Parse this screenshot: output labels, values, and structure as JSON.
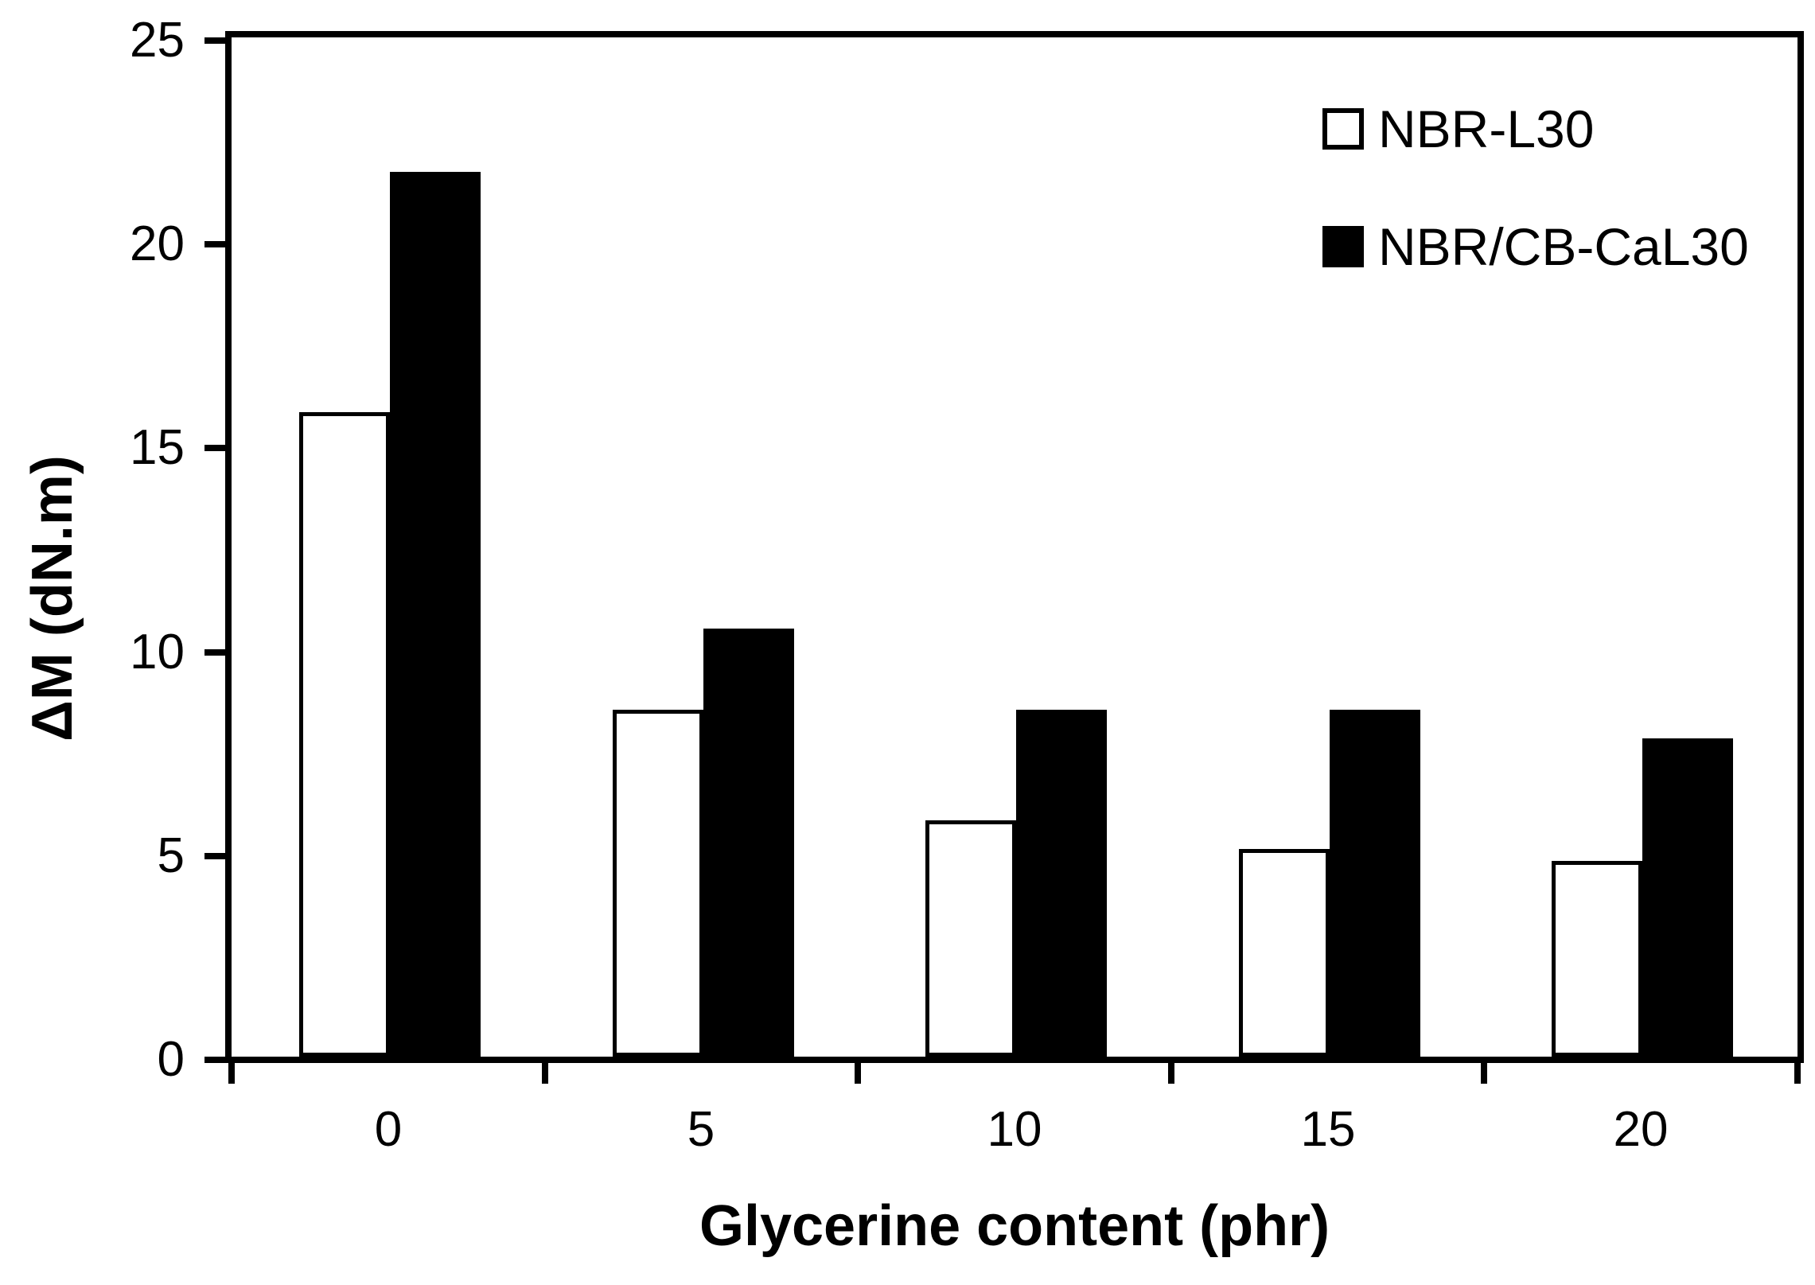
{
  "colors": {
    "foreground": "#000000",
    "background": "#ffffff",
    "series_white_fill": "#ffffff",
    "series_black_fill": "#000000"
  },
  "chart_data": {
    "type": "bar",
    "title": "",
    "xlabel": "Glycerine content (phr)",
    "ylabel": "ΔM (dN.m)",
    "categories": [
      "0",
      "5",
      "10",
      "15",
      "20"
    ],
    "series": [
      {
        "name": "NBR-L30",
        "fill": "white",
        "values": [
          15.8,
          8.5,
          5.8,
          5.1,
          4.8
        ]
      },
      {
        "name": "NBR/CB-CaL30",
        "fill": "black",
        "values": [
          21.7,
          10.5,
          8.5,
          8.5,
          7.8
        ]
      }
    ],
    "ylim": [
      0,
      25
    ],
    "yticks": [
      0,
      5,
      10,
      15,
      20,
      25
    ],
    "grid": "off",
    "legend_position": "top-right-inside",
    "legend": [
      "NBR-L30",
      "NBR/CB-CaL30"
    ]
  }
}
